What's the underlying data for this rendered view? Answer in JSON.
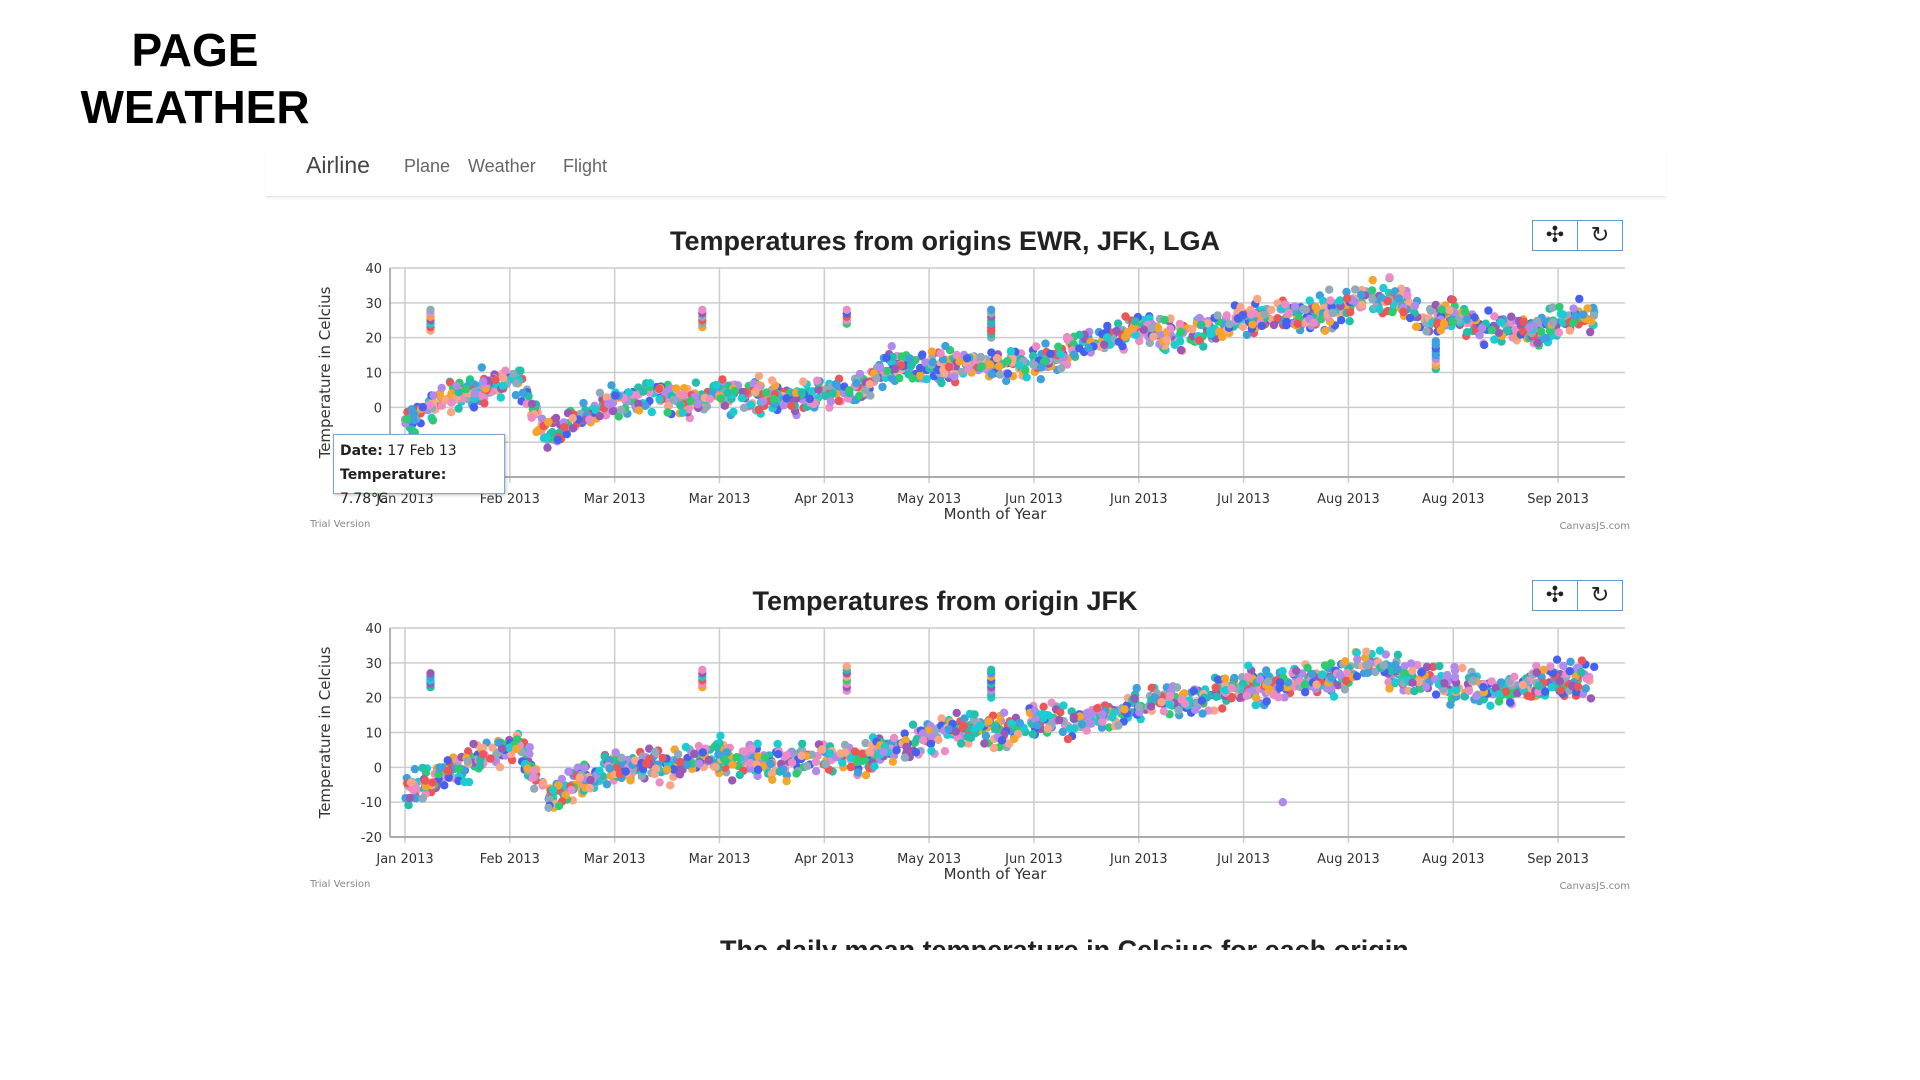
{
  "slide": {
    "title_line1": "PAGE",
    "title_line2": "WEATHER"
  },
  "navbar": {
    "brand": "Airline",
    "links": [
      {
        "label": "Plane"
      },
      {
        "label": "Weather"
      },
      {
        "label": "Flight"
      }
    ]
  },
  "toolbar": {
    "zoom_pan_icon": "move-icon",
    "reset_icon": "reset-icon",
    "zoom_pan_glyph": "✣",
    "reset_glyph": "↻"
  },
  "tooltip": {
    "date_label": "Date:",
    "date_value": "17 Feb 13",
    "temp_label": "Temperature:",
    "temp_value": "7.78°C"
  },
  "footer": {
    "trial": "Trial Version",
    "credit": "CanvasJS.com"
  },
  "next_chart_title": "The daily mean temperature in Celsius for each origin",
  "colors": {
    "palette": [
      "#4661EE",
      "#EC5657",
      "#1BCDD1",
      "#8FAABB",
      "#B08BEB",
      "#3EA0DD",
      "#F5A52A",
      "#23BFAA",
      "#FAA586",
      "#EB8CC6",
      "#9B59B6",
      "#2ECC71"
    ],
    "grid": "#cccccc",
    "axis": "#999999"
  },
  "chart_data": [
    {
      "type": "scatter",
      "title": "Temperatures from origins EWR, JFK, LGA",
      "xlabel": "Month of Year",
      "ylabel": "Temperature in Celcius",
      "ylim": [
        -20,
        40
      ],
      "yticks": [
        -20,
        -10,
        0,
        10,
        20,
        30,
        40
      ],
      "xticks": [
        "Jan 2013",
        "Feb 2013",
        "Mar 2013",
        "Mar 2013",
        "Apr 2013",
        "May 2013",
        "Jun 2013",
        "Jun 2013",
        "Jul 2013",
        "Aug 2013",
        "Aug 2013",
        "Sep 2013"
      ],
      "grid": true,
      "x_unit": "week",
      "trend": [
        [
          0,
          -5
        ],
        [
          1,
          2
        ],
        [
          3,
          6
        ],
        [
          4,
          8
        ],
        [
          5,
          -9
        ],
        [
          6,
          -3
        ],
        [
          7,
          0
        ],
        [
          8,
          2
        ],
        [
          9,
          3
        ],
        [
          10,
          1
        ],
        [
          11,
          4
        ],
        [
          12,
          3
        ],
        [
          13,
          3
        ],
        [
          14,
          3
        ],
        [
          15,
          4
        ],
        [
          16,
          5
        ],
        [
          17,
          12
        ],
        [
          18,
          11
        ],
        [
          19,
          12
        ],
        [
          20,
          13
        ],
        [
          21,
          12
        ],
        [
          22,
          12
        ],
        [
          23,
          14
        ],
        [
          24,
          19
        ],
        [
          25,
          21
        ],
        [
          26,
          23
        ],
        [
          27,
          20
        ],
        [
          28,
          21
        ],
        [
          29,
          24
        ],
        [
          30,
          26
        ],
        [
          31,
          27
        ],
        [
          32,
          27
        ],
        [
          33,
          28
        ],
        [
          34,
          32
        ],
        [
          35,
          31
        ],
        [
          36,
          25
        ],
        [
          37,
          26
        ],
        [
          38,
          22
        ],
        [
          39,
          23
        ],
        [
          40,
          22
        ],
        [
          41,
          26
        ],
        [
          42,
          26
        ]
      ],
      "outliers": [
        {
          "x": 0.9,
          "low": 22,
          "high": 28
        },
        {
          "x": 10.5,
          "low": 23,
          "high": 28
        },
        {
          "x": 15.6,
          "low": 24,
          "high": 28
        },
        {
          "x": 20.7,
          "low": 20,
          "high": 28
        },
        {
          "x": 36.4,
          "low": 11,
          "high": 19
        }
      ]
    },
    {
      "type": "scatter",
      "title": "Temperatures from origin JFK",
      "xlabel": "Month of Year",
      "ylabel": "Temperature in Celcius",
      "ylim": [
        -20,
        40
      ],
      "yticks": [
        -20,
        -10,
        0,
        10,
        20,
        30,
        40
      ],
      "xticks": [
        "Jan 2013",
        "Feb 2013",
        "Mar 2013",
        "Mar 2013",
        "Apr 2013",
        "May 2013",
        "Jun 2013",
        "Jun 2013",
        "Jul 2013",
        "Aug 2013",
        "Aug 2013",
        "Sep 2013"
      ],
      "grid": true,
      "x_unit": "week",
      "trend": [
        [
          0,
          -7
        ],
        [
          1,
          -3
        ],
        [
          2,
          0
        ],
        [
          3,
          3
        ],
        [
          4,
          7
        ],
        [
          5,
          -9
        ],
        [
          6,
          -4
        ],
        [
          7,
          -1
        ],
        [
          8,
          1
        ],
        [
          9,
          0
        ],
        [
          10,
          2
        ],
        [
          11,
          3
        ],
        [
          12,
          2
        ],
        [
          13,
          1
        ],
        [
          14,
          3
        ],
        [
          15,
          3
        ],
        [
          16,
          2
        ],
        [
          17,
          5
        ],
        [
          18,
          7
        ],
        [
          19,
          10
        ],
        [
          20,
          12
        ],
        [
          21,
          10
        ],
        [
          22,
          12
        ],
        [
          23,
          14
        ],
        [
          24,
          14
        ],
        [
          25,
          15
        ],
        [
          26,
          18
        ],
        [
          27,
          20
        ],
        [
          28,
          19
        ],
        [
          29,
          22
        ],
        [
          30,
          23
        ],
        [
          31,
          24
        ],
        [
          32,
          25
        ],
        [
          33,
          26
        ],
        [
          34,
          30
        ],
        [
          35,
          27
        ],
        [
          36,
          25
        ],
        [
          37,
          23
        ],
        [
          38,
          22
        ],
        [
          39,
          22
        ],
        [
          40,
          24
        ],
        [
          41,
          25
        ],
        [
          42,
          25
        ]
      ],
      "outliers": [
        {
          "x": 0.9,
          "low": 23,
          "high": 27
        },
        {
          "x": 10.5,
          "low": 23,
          "high": 28
        },
        {
          "x": 15.6,
          "low": 22,
          "high": 29
        },
        {
          "x": 20.7,
          "low": 20,
          "high": 28
        },
        {
          "x": 31.0,
          "low": -10,
          "high": -10
        }
      ]
    }
  ]
}
